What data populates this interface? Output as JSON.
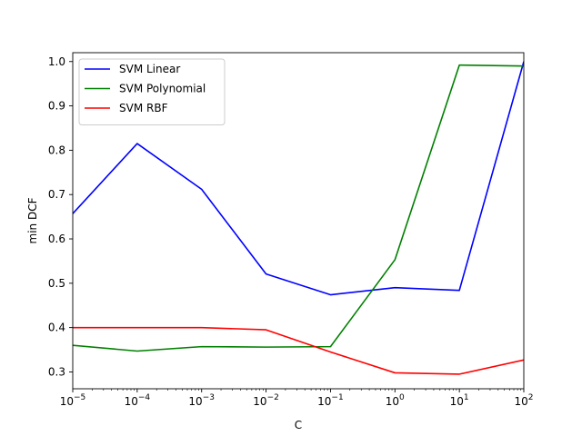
{
  "chart_data": {
    "type": "line",
    "xlabel": "C",
    "ylabel": "min DCF",
    "x_scale": "log",
    "x": [
      1e-05,
      0.0001,
      0.001,
      0.01,
      0.1,
      1,
      10,
      100
    ],
    "x_tick_labels": [
      {
        "base": "10",
        "exp": "−5"
      },
      {
        "base": "10",
        "exp": "−4"
      },
      {
        "base": "10",
        "exp": "−3"
      },
      {
        "base": "10",
        "exp": "−2"
      },
      {
        "base": "10",
        "exp": "−1"
      },
      {
        "base": "10",
        "exp": "0"
      },
      {
        "base": "10",
        "exp": "1"
      },
      {
        "base": "10",
        "exp": "2"
      }
    ],
    "y_ticks": [
      "0.3",
      "0.4",
      "0.5",
      "0.6",
      "0.7",
      "0.8",
      "0.9",
      "1.0"
    ],
    "xlim": [
      1e-05,
      100
    ],
    "ylim": [
      0.262,
      1.02
    ],
    "legend_position": "top-left",
    "grid": false,
    "series": [
      {
        "name": "SVM Linear",
        "color": "#0000ff",
        "values": [
          0.657,
          0.815,
          0.712,
          0.521,
          0.474,
          0.49,
          0.484,
          1.0
        ]
      },
      {
        "name": "SVM Polynomial",
        "color": "#008000",
        "values": [
          0.36,
          0.347,
          0.357,
          0.356,
          0.357,
          0.553,
          0.992,
          0.99
        ]
      },
      {
        "name": "SVM RBF",
        "color": "#ff0000",
        "values": [
          0.4,
          0.4,
          0.4,
          0.395,
          0.345,
          0.298,
          0.295,
          0.327
        ]
      }
    ]
  }
}
